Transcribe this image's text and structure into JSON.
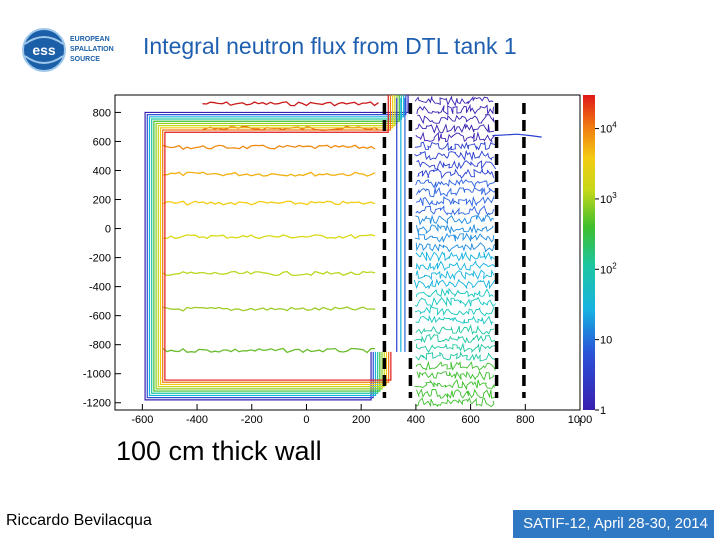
{
  "header": {
    "title": "Integral neutron flux from DTL tank 1",
    "logo": {
      "mark": "ess",
      "lines": [
        "EUROPEAN",
        "SPALLATION",
        "SOURCE"
      ]
    }
  },
  "caption": "100 cm thick wall",
  "footer": {
    "author": "Riccardo Bevilacqua",
    "event": "SATIF-12, April 28-30, 2014"
  },
  "colors": {
    "title": "#1f5fb0",
    "footer_bg": "#2f78c4",
    "wall_marker": "#000000"
  },
  "chart_data": {
    "type": "heatmap",
    "title": "Integral neutron flux from DTL tank 1",
    "xlim": [
      -700,
      1000
    ],
    "ylim": [
      -1250,
      920
    ],
    "x_ticks": [
      -600,
      -400,
      -200,
      0,
      200,
      400,
      600,
      800,
      1000
    ],
    "y_ticks": [
      800,
      600,
      400,
      200,
      0,
      -200,
      -400,
      -600,
      -800,
      -1000,
      -1200
    ],
    "colorbar": {
      "scale": "log",
      "range": [
        1,
        30000
      ],
      "tick_labels": [
        {
          "base": "10",
          "exp": "4",
          "value": 10000
        },
        {
          "base": "10",
          "exp": "3",
          "value": 1000
        },
        {
          "base": "10",
          "exp": "2",
          "value": 100
        },
        {
          "base": "10",
          "exp": "",
          "value": 10
        },
        {
          "base": "1",
          "exp": "",
          "value": 1
        }
      ],
      "colorbar_footnote": "i"
    },
    "shield_outline": {
      "inner_x": 280,
      "top_y": 800,
      "bottom_y": -1180,
      "left_x": -590
    },
    "contour_levels": [
      {
        "y": 860,
        "color": "#cc1a1a"
      },
      {
        "y": 690,
        "color": "#e05515"
      },
      {
        "y": 560,
        "color": "#ef8a10"
      },
      {
        "y": 375,
        "color": "#f2b010"
      },
      {
        "y": 175,
        "color": "#f3cd12"
      },
      {
        "y": -55,
        "color": "#d9da16"
      },
      {
        "y": -310,
        "color": "#bcd722"
      },
      {
        "y": -555,
        "color": "#9ecc2a"
      },
      {
        "y": -840,
        "color": "#6abd2e"
      }
    ],
    "wall_markers_x": [
      285,
      380,
      695,
      795
    ],
    "wall_label": "100 cm thick wall"
  }
}
